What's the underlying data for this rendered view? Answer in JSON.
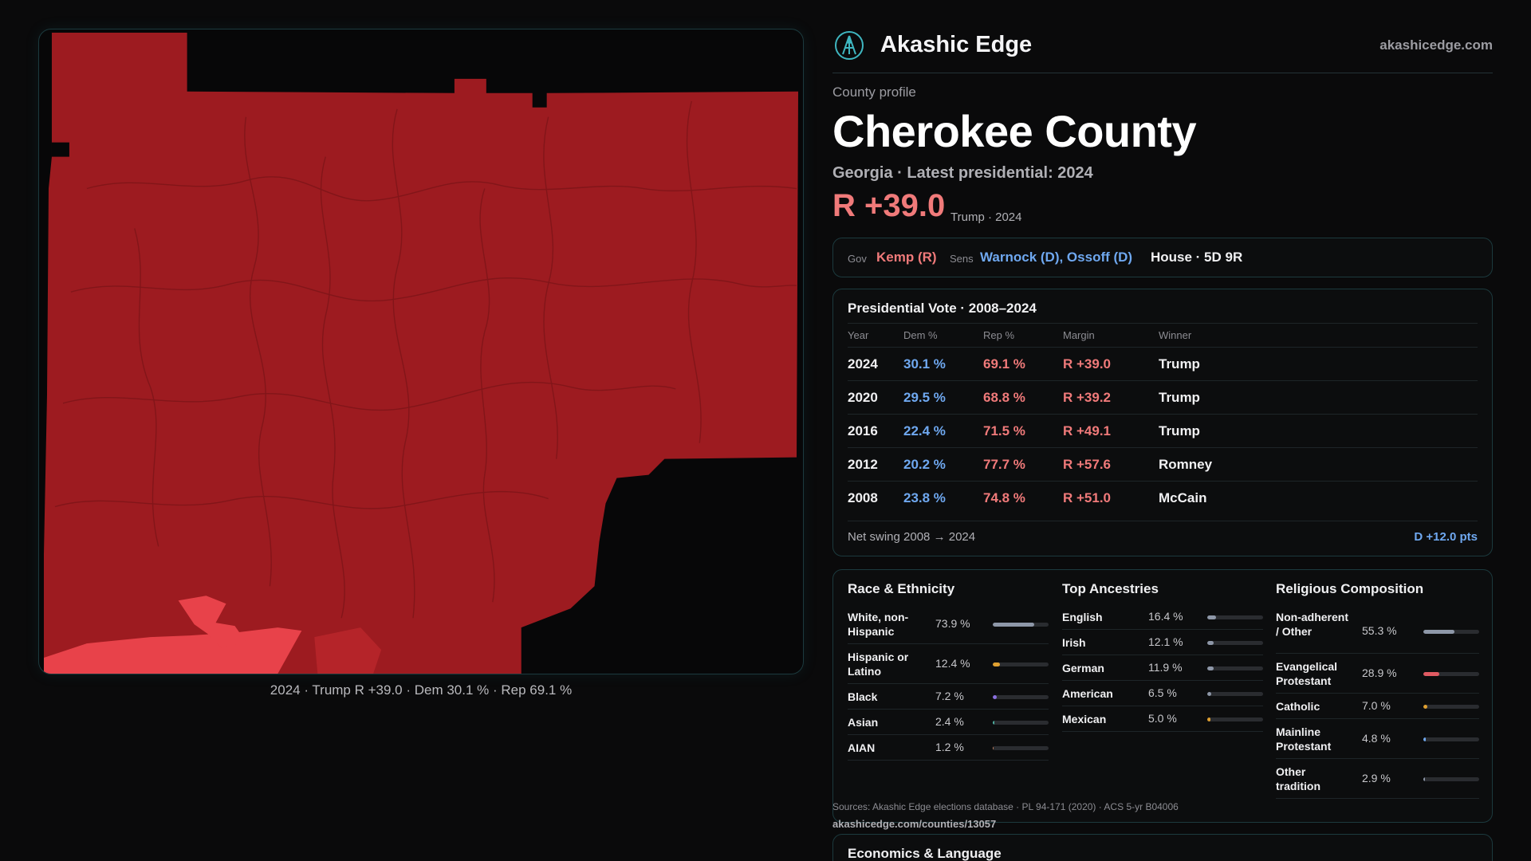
{
  "map": {
    "caption": "2024 · Trump R +39.0 · Dem 30.1 % · Rep 69.1 %",
    "colors": {
      "strong_red": "#9d1b20",
      "light_red": "#e8424a"
    }
  },
  "header": {
    "brand": "Akashic Edge",
    "site": "akashicedge.com"
  },
  "profile": {
    "eyebrow": "County profile",
    "title": "Cherokee County",
    "subtitle": "Georgia · Latest presidential: 2024",
    "margin": "R +39.0",
    "margin_sub": "Trump · 2024"
  },
  "officials": {
    "gov_label": "Gov",
    "gov": "Kemp (R)",
    "sens_label": "Sens",
    "sens": "Warnock (D), Ossoff (D)",
    "house": "House · 5D 9R"
  },
  "presidential": {
    "title": "Presidential Vote · 2008–2024",
    "columns": [
      "Year",
      "Dem %",
      "Rep %",
      "Margin",
      "Winner"
    ],
    "rows": [
      {
        "year": "2024",
        "dem": "30.1 %",
        "rep": "69.1 %",
        "margin": "R +39.0",
        "winner": "Trump"
      },
      {
        "year": "2020",
        "dem": "29.5 %",
        "rep": "68.8 %",
        "margin": "R +39.2",
        "winner": "Trump"
      },
      {
        "year": "2016",
        "dem": "22.4 %",
        "rep": "71.5 %",
        "margin": "R +49.1",
        "winner": "Trump"
      },
      {
        "year": "2012",
        "dem": "20.2 %",
        "rep": "77.7 %",
        "margin": "R +57.6",
        "winner": "Romney"
      },
      {
        "year": "2008",
        "dem": "23.8 %",
        "rep": "74.8 %",
        "margin": "R +51.0",
        "winner": "McCain"
      }
    ],
    "swing_label": "Net swing 2008 → 2024",
    "swing_value": "D +12.0 pts"
  },
  "race": {
    "title": "Race & Ethnicity",
    "items": [
      {
        "label": "White, non-Hispanic",
        "pct": "73.9 %",
        "value": 73.9,
        "color": "#8e97a8"
      },
      {
        "label": "Hispanic or Latino",
        "pct": "12.4 %",
        "value": 12.4,
        "color": "#e0a030"
      },
      {
        "label": "Black",
        "pct": "7.2 %",
        "value": 7.2,
        "color": "#8a6fe0"
      },
      {
        "label": "Asian",
        "pct": "2.4 %",
        "value": 2.4,
        "color": "#4fb0a0"
      },
      {
        "label": "AIAN",
        "pct": "1.2 %",
        "value": 1.2,
        "color": "#c08060"
      }
    ]
  },
  "ancestry": {
    "title": "Top Ancestries",
    "items": [
      {
        "label": "English",
        "pct": "16.4 %",
        "value": 16.4,
        "color": "#8e97a8"
      },
      {
        "label": "Irish",
        "pct": "12.1 %",
        "value": 12.1,
        "color": "#8e97a8"
      },
      {
        "label": "German",
        "pct": "11.9 %",
        "value": 11.9,
        "color": "#8e97a8"
      },
      {
        "label": "American",
        "pct": "6.5 %",
        "value": 6.5,
        "color": "#8e97a8"
      },
      {
        "label": "Mexican",
        "pct": "5.0 %",
        "value": 5.0,
        "color": "#e0a030"
      }
    ]
  },
  "religion": {
    "title": "Religious Composition",
    "items": [
      {
        "label": "Non-adherent / Other",
        "pct": "55.3 %",
        "value": 55.3,
        "color": "#8e97a8"
      },
      {
        "label": "Evangelical Protestant",
        "pct": "28.9 %",
        "value": 28.9,
        "color": "#e05a62"
      },
      {
        "label": "Catholic",
        "pct": "7.0 %",
        "value": 7.0,
        "color": "#e0a030"
      },
      {
        "label": "Mainline Protestant",
        "pct": "4.8 %",
        "value": 4.8,
        "color": "#6fa8f0"
      },
      {
        "label": "Other tradition",
        "pct": "2.9 %",
        "value": 2.9,
        "color": "#8e97a8"
      }
    ]
  },
  "sources": {
    "text": "Sources: Akashic Edge elections database · PL 94-171 (2020) · ACS 5-yr B04006",
    "url": "akashicedge.com/counties/13057"
  },
  "economics": {
    "title": "Economics & Language"
  }
}
